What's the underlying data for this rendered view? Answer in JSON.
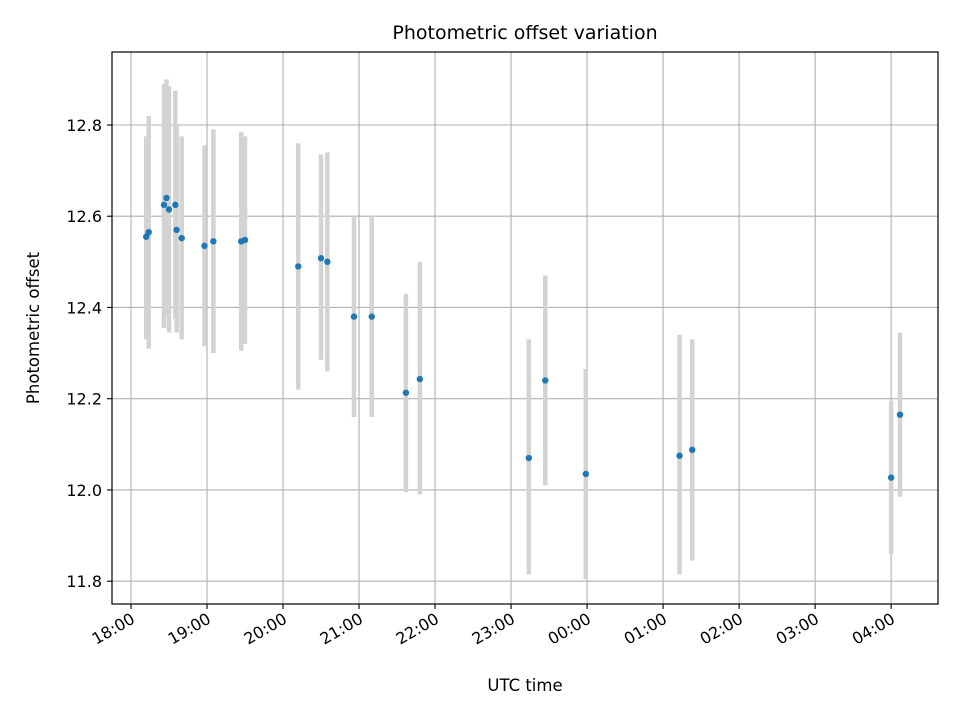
{
  "chart_data": {
    "type": "scatter",
    "title": "Photometric offset variation",
    "xlabel": "UTC time",
    "ylabel": "Photometric offset",
    "x_unit": "UTC hour",
    "xlim": [
      "17:45",
      "04:37"
    ],
    "ylim": [
      11.75,
      12.96
    ],
    "grid": true,
    "x_ticks": [
      "18:00",
      "19:00",
      "20:00",
      "21:00",
      "22:00",
      "23:00",
      "00:00",
      "01:00",
      "02:00",
      "03:00",
      "04:00"
    ],
    "y_ticks": [
      "11.8",
      "12.0",
      "12.2",
      "12.4",
      "12.6",
      "12.8"
    ],
    "colors": {
      "points": "#1f77b4",
      "errorbars": "#d3d3d3",
      "grid": "#b0b0b0"
    },
    "points": [
      {
        "x": "18:12",
        "y": 12.555,
        "y_low": 12.33,
        "y_high": 12.775
      },
      {
        "x": "18:14",
        "y": 12.565,
        "y_low": 12.31,
        "y_high": 12.82
      },
      {
        "x": "18:26",
        "y": 12.625,
        "y_low": 12.355,
        "y_high": 12.89
      },
      {
        "x": "18:28",
        "y": 12.64,
        "y_low": 12.38,
        "y_high": 12.9
      },
      {
        "x": "18:30",
        "y": 12.615,
        "y_low": 12.345,
        "y_high": 12.885
      },
      {
        "x": "18:35",
        "y": 12.625,
        "y_low": 12.375,
        "y_high": 12.875
      },
      {
        "x": "18:36",
        "y": 12.57,
        "y_low": 12.345,
        "y_high": 12.8
      },
      {
        "x": "18:40",
        "y": 12.552,
        "y_low": 12.33,
        "y_high": 12.775
      },
      {
        "x": "18:58",
        "y": 12.535,
        "y_low": 12.315,
        "y_high": 12.755
      },
      {
        "x": "19:05",
        "y": 12.545,
        "y_low": 12.3,
        "y_high": 12.79
      },
      {
        "x": "19:27",
        "y": 12.545,
        "y_low": 12.305,
        "y_high": 12.785
      },
      {
        "x": "19:30",
        "y": 12.548,
        "y_low": 12.32,
        "y_high": 12.775
      },
      {
        "x": "20:12",
        "y": 12.49,
        "y_low": 12.22,
        "y_high": 12.76
      },
      {
        "x": "20:30",
        "y": 12.508,
        "y_low": 12.285,
        "y_high": 12.735
      },
      {
        "x": "20:35",
        "y": 12.5,
        "y_low": 12.26,
        "y_high": 12.74
      },
      {
        "x": "20:56",
        "y": 12.38,
        "y_low": 12.16,
        "y_high": 12.6
      },
      {
        "x": "21:10",
        "y": 12.38,
        "y_low": 12.16,
        "y_high": 12.6
      },
      {
        "x": "21:37",
        "y": 12.213,
        "y_low": 11.995,
        "y_high": 12.43
      },
      {
        "x": "21:48",
        "y": 12.243,
        "y_low": 11.99,
        "y_high": 12.5
      },
      {
        "x": "23:14",
        "y": 12.07,
        "y_low": 11.815,
        "y_high": 12.33
      },
      {
        "x": "23:27",
        "y": 12.24,
        "y_low": 12.01,
        "y_high": 12.47
      },
      {
        "x": "23:59",
        "y": 12.035,
        "y_low": 11.805,
        "y_high": 12.265
      },
      {
        "x": "01:13",
        "y": 12.075,
        "y_low": 11.815,
        "y_high": 12.34
      },
      {
        "x": "01:23",
        "y": 12.088,
        "y_low": 11.845,
        "y_high": 12.33
      },
      {
        "x": "04:00",
        "y": 12.027,
        "y_low": 11.86,
        "y_high": 12.195
      },
      {
        "x": "04:07",
        "y": 12.165,
        "y_low": 11.985,
        "y_high": 12.345
      }
    ]
  }
}
